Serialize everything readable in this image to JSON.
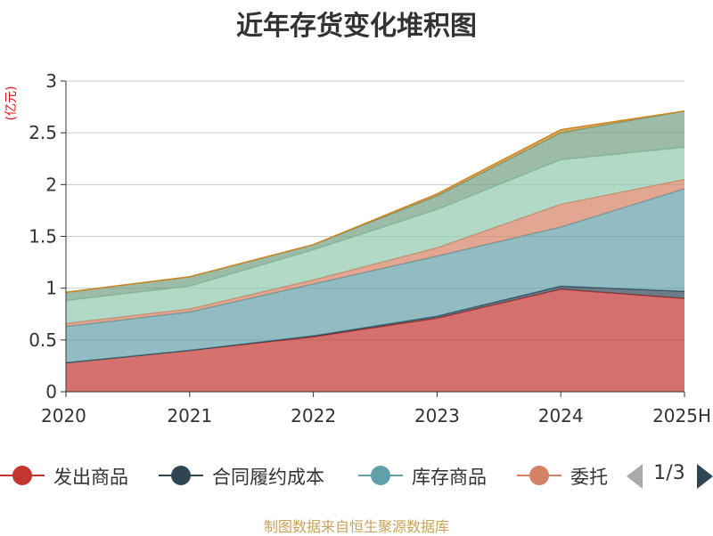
{
  "colors": {
    "axis": "#333333",
    "grid": "#cccccc",
    "unit": "#d9141a",
    "source": "#c8a45a",
    "pager_active": "#2f4554",
    "pager_inactive": "#aaaaaa"
  },
  "legend": {
    "page_text": "1/3",
    "items": [
      {
        "label": "发出商品",
        "color": "#c23531"
      },
      {
        "label": "合同履约成本",
        "color": "#2f4554"
      },
      {
        "label": "库存商品",
        "color": "#61a0a8"
      },
      {
        "label": "委托",
        "color": "#d48265"
      }
    ]
  },
  "footer": {
    "source": "制图数据来自恒生聚源数据库"
  },
  "chart_data": {
    "type": "area",
    "stacked": true,
    "title": "近年存货变化堆积图",
    "unit": "(亿元)",
    "x": [
      "2020",
      "2021",
      "2022",
      "2023",
      "2024",
      "2025H"
    ],
    "ylim": [
      0,
      3
    ],
    "yticks": [
      "0",
      "0.5",
      "1",
      "1.5",
      "2",
      "2.5",
      "3"
    ],
    "grid": true,
    "legend_position": "bottom",
    "series": [
      {
        "name": "发出商品",
        "color": "#c23531",
        "values": [
          0.28,
          0.4,
          0.53,
          0.71,
          0.99,
          0.9
        ]
      },
      {
        "name": "合同履约成本",
        "color": "#2f4554",
        "values": [
          0.0,
          0.0,
          0.01,
          0.02,
          0.03,
          0.07
        ]
      },
      {
        "name": "库存商品",
        "color": "#61a0a8",
        "values": [
          0.35,
          0.37,
          0.5,
          0.58,
          0.57,
          0.99
        ]
      },
      {
        "name": "委托",
        "color": "#d48265",
        "values": [
          0.03,
          0.03,
          0.04,
          0.08,
          0.22,
          0.09
        ]
      },
      {
        "color": "#91c7ae",
        "values": [
          0.22,
          0.22,
          0.29,
          0.37,
          0.43,
          0.31
        ]
      },
      {
        "color": "#749f83",
        "values": [
          0.08,
          0.09,
          0.05,
          0.13,
          0.26,
          0.35
        ]
      },
      {
        "color": "#ca8622",
        "values": [
          0.0,
          0.0,
          0.0,
          0.02,
          0.03,
          0.0
        ]
      }
    ]
  }
}
